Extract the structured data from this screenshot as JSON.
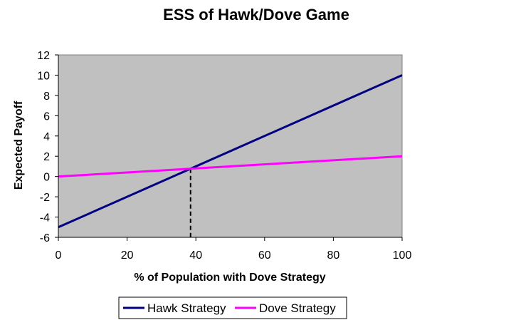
{
  "chart_data": {
    "type": "line",
    "title": "ESS of Hawk/Dove Game",
    "xlabel": "% of Population with Dove Strategy",
    "ylabel": "Expected Payoff",
    "xlim": [
      0,
      100
    ],
    "ylim": [
      -6,
      12
    ],
    "x_ticks": [
      "0",
      "20",
      "40",
      "60",
      "80",
      "100"
    ],
    "y_ticks": [
      "-6",
      "-4",
      "-2",
      "0",
      "2",
      "4",
      "6",
      "8",
      "10",
      "12"
    ],
    "grid": false,
    "plot_background": "#c0c0c0",
    "legend_position": "bottom",
    "series": [
      {
        "name": "Hawk Strategy",
        "color": "#000080",
        "x": [
          0,
          100
        ],
        "y": [
          -5,
          10
        ]
      },
      {
        "name": "Dove Strategy",
        "color": "#ff00ff",
        "x": [
          0,
          100
        ],
        "y": [
          0,
          2
        ]
      }
    ],
    "annotations": [
      {
        "type": "dashed-vertical-line",
        "x": 38.46,
        "y": 0.77,
        "color": "#000000"
      }
    ]
  }
}
